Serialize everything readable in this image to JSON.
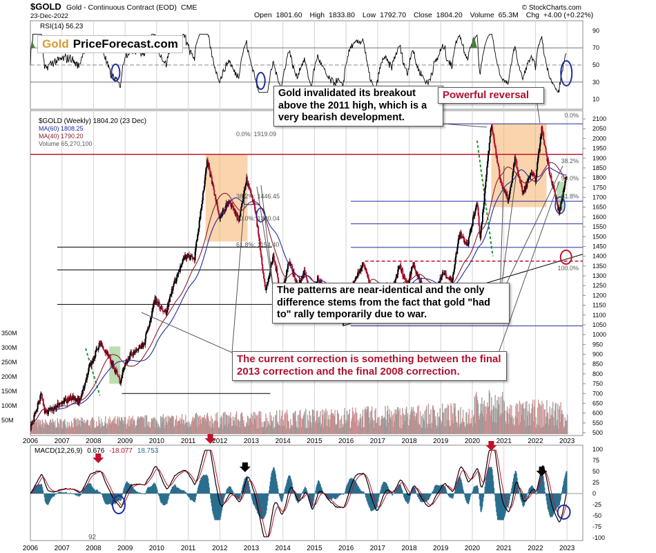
{
  "header": {
    "symbol": "$GOLD",
    "name": "Gold - Continuous Contract (EOD)",
    "exchange": "CME",
    "date": "23-Dec-2022",
    "open_label": "Open",
    "open": "1801.60",
    "high_label": "High",
    "high": "1833.80",
    "low_label": "Low",
    "low": "1792.70",
    "close_label": "Close",
    "close": "1804.20",
    "volume_label": "Volume",
    "volume": "65.3M",
    "chg_label": "Chg",
    "chg": "+4.00 (+0.22%)",
    "credit": "© StockCharts.com"
  },
  "brand": {
    "part1": "Gold",
    "part2": "PriceForecast.com"
  },
  "legend": {
    "main": "$GOLD (Weekly) 1804.20 (23 Dec)",
    "ma60": "MA(60) 1808.25",
    "ma40": "MA(40) 1790.20",
    "volume": "Volume 65,270,100",
    "rsi": "RSI(14) 56.23",
    "macd_label": "MACD(12,26,9)",
    "macd_v1": "0.676",
    "macd_v2": "-18.077",
    "macd_v3": "18.753"
  },
  "annotations": {
    "breakout": "Gold invalidated its breakout above the 2011 high, which is a very bearish development.",
    "reversal": "Powerful reversal",
    "patterns": "The patterns are near-identical and the only difference stems from the fact that gold \"had to\" rally temporarily due to war.",
    "correction": "The current correction is something between the final 2013 correction and the final 2008 correction."
  },
  "fib_labels": {
    "a0": "0.0%: 1919.09",
    "a382": "38.2%: 1446.45",
    "a50": "50.0%: 1330.04",
    "a618": "61.8%: 1154.40",
    "b0": "0.0%",
    "b382": "38.2%",
    "b50": "50.0%",
    "b618": "61.8%",
    "b100": "100.0%"
  },
  "macd_footnote": "92",
  "colors": {
    "price": "#000000",
    "ma60": "#1c2a9c",
    "ma40": "#8b1a2e",
    "volume_up": "#cd8f8f",
    "volume_down": "#9a9a9a",
    "rsi_fill": "#4a7d3a",
    "macd_hist": "#2a6e8e",
    "resistance": "#c0102a",
    "fib": "#1c2a9c",
    "annotation_red": "#b0102e",
    "highlight": "#f5b16a",
    "highlight_green": "#8ec67f",
    "circle": "#1a2fa0",
    "arrow_red": "#c0102a"
  },
  "chart_data": [
    {
      "type": "line",
      "panel": "rsi",
      "series": [
        {
          "name": "RSI(14)",
          "last": 56.23
        }
      ],
      "ylim": [
        0,
        100
      ],
      "yticks": [
        10,
        30,
        50,
        70,
        90
      ],
      "ytick_labels": [
        "10",
        "30",
        "50",
        "70",
        "90"
      ]
    },
    {
      "type": "line",
      "panel": "price",
      "x_label_years": [
        "2006",
        "2007",
        "2008",
        "2009",
        "2010",
        "2011",
        "2012",
        "2013",
        "2014",
        "2015",
        "2016",
        "2017",
        "2018",
        "2019",
        "2020",
        "2021",
        "2022",
        "2023"
      ],
      "xlim": [
        2006.0,
        2023.5
      ],
      "ylim": [
        500,
        2100
      ],
      "yticks": [
        500,
        550,
        600,
        650,
        700,
        750,
        800,
        850,
        900,
        950,
        1000,
        1050,
        1100,
        1150,
        1200,
        1250,
        1300,
        1350,
        1400,
        1450,
        1500,
        1550,
        1600,
        1650,
        1700,
        1750,
        1800,
        1850,
        1900,
        1950,
        2000,
        2050,
        2100
      ],
      "ytick_labels": [
        "500",
        "550",
        "600",
        "650",
        "700",
        "750",
        "800",
        "850",
        "900",
        "950",
        "1000",
        "1050",
        "1100",
        "1150",
        "1200",
        "1250",
        "1300",
        "1350",
        "1400",
        "1450",
        "1500",
        "1550",
        "1600",
        "1650",
        "1700",
        "1750",
        "1800",
        "1850",
        "1900",
        "1950",
        "2000",
        "2050",
        "2100"
      ],
      "volume_ticks": [
        "50M",
        "100M",
        "150M",
        "200M",
        "250M",
        "300M",
        "350M"
      ],
      "series": [
        {
          "name": "$GOLD (Weekly)",
          "points": [
            [
              2006.0,
              520
            ],
            [
              2006.35,
              700
            ],
            [
              2006.45,
              600
            ],
            [
              2006.9,
              640
            ],
            [
              2007.3,
              680
            ],
            [
              2007.55,
              660
            ],
            [
              2007.85,
              820
            ],
            [
              2008.2,
              960
            ],
            [
              2008.5,
              880
            ],
            [
              2008.85,
              760
            ],
            [
              2009.0,
              860
            ],
            [
              2009.3,
              920
            ],
            [
              2009.6,
              950
            ],
            [
              2009.95,
              1180
            ],
            [
              2010.3,
              1110
            ],
            [
              2010.5,
              1240
            ],
            [
              2010.9,
              1400
            ],
            [
              2011.2,
              1390
            ],
            [
              2011.6,
              1880
            ],
            [
              2011.75,
              1780
            ],
            [
              2012.0,
              1600
            ],
            [
              2012.3,
              1680
            ],
            [
              2012.6,
              1590
            ],
            [
              2012.85,
              1790
            ],
            [
              2013.1,
              1660
            ],
            [
              2013.3,
              1420
            ],
            [
              2013.45,
              1220
            ],
            [
              2013.7,
              1400
            ],
            [
              2013.95,
              1200
            ],
            [
              2014.2,
              1380
            ],
            [
              2014.45,
              1250
            ],
            [
              2014.7,
              1320
            ],
            [
              2014.9,
              1150
            ],
            [
              2015.1,
              1290
            ],
            [
              2015.5,
              1170
            ],
            [
              2015.9,
              1060
            ],
            [
              2016.2,
              1240
            ],
            [
              2016.55,
              1370
            ],
            [
              2016.95,
              1130
            ],
            [
              2017.2,
              1250
            ],
            [
              2017.45,
              1220
            ],
            [
              2017.7,
              1350
            ],
            [
              2017.95,
              1250
            ],
            [
              2018.1,
              1360
            ],
            [
              2018.6,
              1180
            ],
            [
              2018.9,
              1250
            ],
            [
              2019.1,
              1320
            ],
            [
              2019.35,
              1270
            ],
            [
              2019.6,
              1520
            ],
            [
              2019.85,
              1460
            ],
            [
              2020.15,
              1680
            ],
            [
              2020.25,
              1490
            ],
            [
              2020.6,
              2070
            ],
            [
              2020.9,
              1780
            ],
            [
              2021.15,
              1680
            ],
            [
              2021.35,
              1900
            ],
            [
              2021.6,
              1720
            ],
            [
              2021.85,
              1820
            ],
            [
              2022.0,
              1790
            ],
            [
              2022.2,
              2050
            ],
            [
              2022.45,
              1830
            ],
            [
              2022.75,
              1620
            ],
            [
              2022.9,
              1740
            ],
            [
              2022.98,
              1804.2
            ]
          ]
        },
        {
          "name": "MA(60)",
          "last": 1808.25
        },
        {
          "name": "MA(40)",
          "last": 1790.2
        }
      ],
      "annotations": {
        "resistance_2011_high": 1919.09,
        "dashed_support": 1375,
        "fib_2011": [
          1919.09,
          1446.45,
          1330.04,
          1154.4
        ],
        "fib_2015_2020": {
          "low": 1045,
          "high": 2075,
          "levels": [
            2075,
            1680,
            1565,
            1445,
            1045
          ]
        }
      }
    },
    {
      "type": "line",
      "panel": "macd",
      "series": [
        {
          "name": "MACD(12,26,9)",
          "values": [
            0.676,
            -18.077,
            18.753
          ]
        }
      ],
      "ylim": [
        -100,
        100
      ],
      "yticks": [
        -100,
        -75,
        -50,
        -25,
        0,
        25,
        50,
        75,
        100
      ],
      "ytick_labels": [
        "-100",
        "-75",
        "-50",
        "-25",
        "0",
        "25",
        "50",
        "75",
        "100"
      ]
    }
  ]
}
